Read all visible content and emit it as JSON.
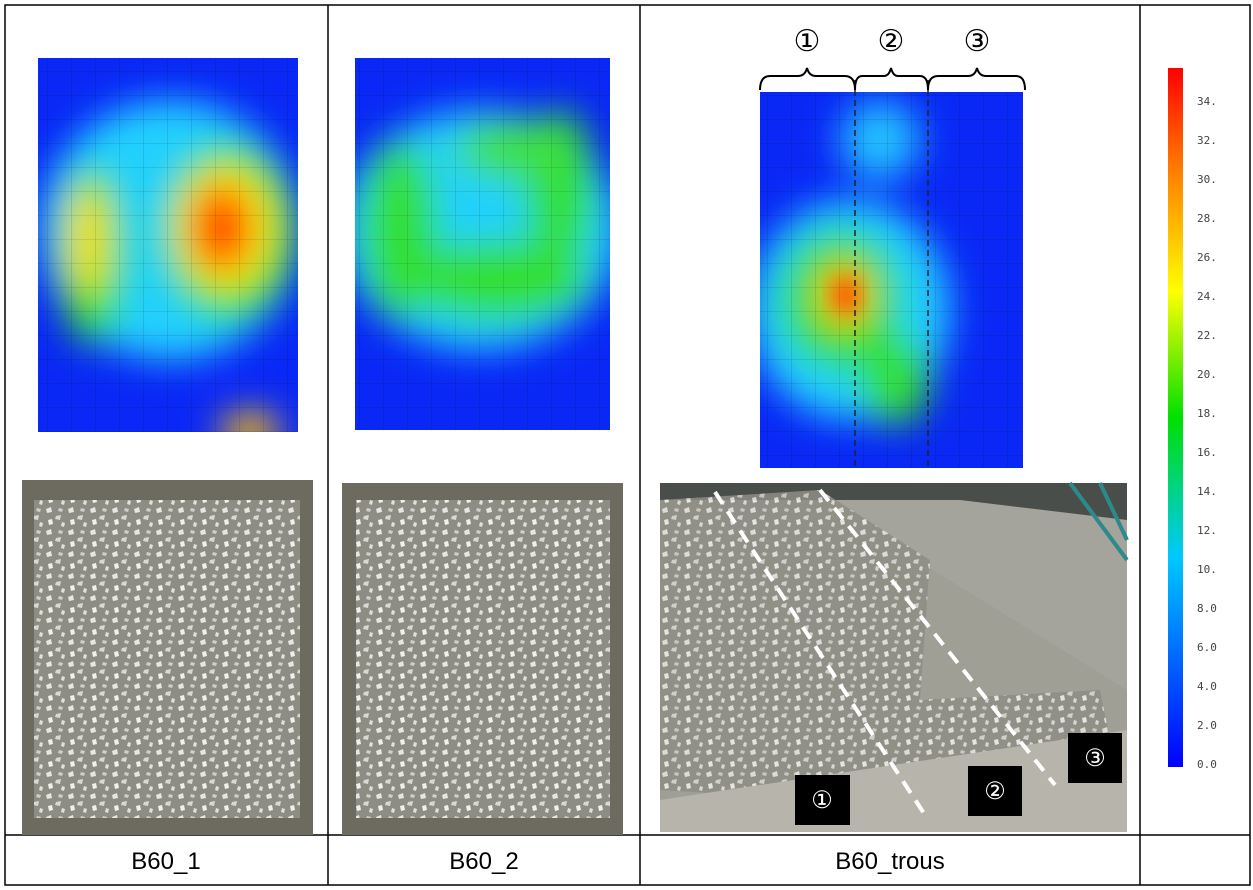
{
  "table": {
    "captions": [
      "B60_1",
      "B60_2",
      "B60_trous"
    ]
  },
  "zone_labels": [
    "①",
    "②",
    "③"
  ],
  "photo_labels": [
    "①",
    "②",
    "③"
  ],
  "colorbar": {
    "labels": [
      "34.",
      "32.",
      "30.",
      "28.",
      "26.",
      "24.",
      "22.",
      "20.",
      "18.",
      "16.",
      "14.",
      "12.",
      "10.",
      "8.0",
      "6.0",
      "4.0",
      "2.0",
      "0.0"
    ]
  }
}
